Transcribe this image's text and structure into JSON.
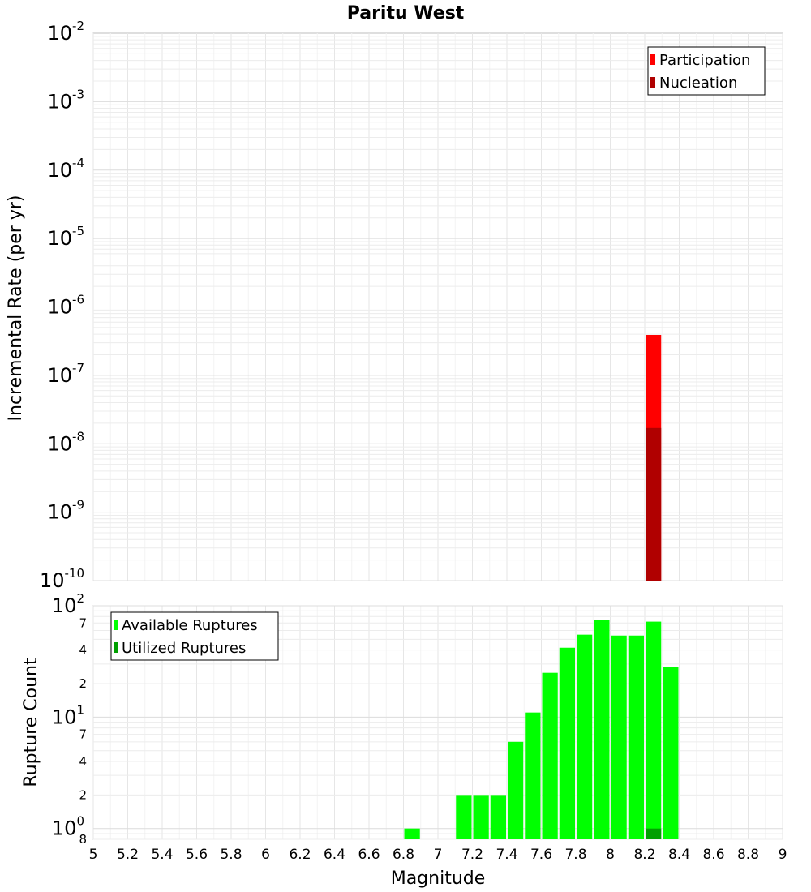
{
  "chart_data": [
    {
      "type": "bar",
      "title": "Paritu West",
      "ylabel": "Incremental Rate (per yr)",
      "xlim": [
        5,
        9
      ],
      "ylim": [
        1e-10,
        0.01
      ],
      "yscale": "log",
      "grid": true,
      "legend_position": "top-right",
      "bin_width": 0.1,
      "series": [
        {
          "name": "Participation",
          "color": "#ff0000",
          "x": [
            8.25
          ],
          "values": [
            3.9e-07
          ]
        },
        {
          "name": "Nucleation",
          "color": "#b00000",
          "x": [
            8.25
          ],
          "values": [
            1.7e-08
          ]
        }
      ]
    },
    {
      "type": "bar",
      "xlabel": "Magnitude",
      "ylabel": "Rupture Count",
      "xlim": [
        5,
        9
      ],
      "ylim": [
        0.8,
        100
      ],
      "yscale": "log",
      "grid": true,
      "legend_position": "top-left",
      "bin_width": 0.1,
      "series": [
        {
          "name": "Available Ruptures",
          "color": "#00ff00",
          "x": [
            6.85,
            7.15,
            7.25,
            7.35,
            7.45,
            7.55,
            7.65,
            7.75,
            7.85,
            7.95,
            8.05,
            8.15,
            8.25,
            8.35
          ],
          "values": [
            1,
            2,
            2,
            2,
            6,
            11,
            25,
            42,
            55,
            75,
            54,
            54,
            72,
            28
          ]
        },
        {
          "name": "Utilized Ruptures",
          "color": "#00a000",
          "x": [
            8.25
          ],
          "values": [
            1
          ]
        }
      ]
    }
  ],
  "axes": {
    "x_ticks": [
      "5",
      "5.2",
      "5.4",
      "5.6",
      "5.8",
      "6",
      "6.2",
      "6.4",
      "6.6",
      "6.8",
      "7",
      "7.2",
      "7.4",
      "7.6",
      "7.8",
      "8",
      "8.2",
      "8.4",
      "8.6",
      "8.8",
      "9"
    ],
    "top_y_ticks": [
      {
        "base": "10",
        "exp": "-2",
        "value": 0.01
      },
      {
        "base": "10",
        "exp": "-3",
        "value": 0.001
      },
      {
        "base": "10",
        "exp": "-4",
        "value": 0.0001
      },
      {
        "base": "10",
        "exp": "-5",
        "value": 1e-05
      },
      {
        "base": "10",
        "exp": "-6",
        "value": 1e-06
      },
      {
        "base": "10",
        "exp": "-7",
        "value": 1e-07
      },
      {
        "base": "10",
        "exp": "-8",
        "value": 1e-08
      },
      {
        "base": "10",
        "exp": "-9",
        "value": 1e-09
      },
      {
        "base": "10",
        "exp": "-10",
        "value": 1e-10
      }
    ],
    "bottom_y_major": [
      {
        "base": "10",
        "exp": "2",
        "value": 100
      },
      {
        "base": "10",
        "exp": "1",
        "value": 10
      },
      {
        "base": "10",
        "exp": "0",
        "value": 1
      }
    ],
    "bottom_y_minor": [
      {
        "label": "7",
        "value": 70
      },
      {
        "label": "4",
        "value": 40
      },
      {
        "label": "2",
        "value": 20
      },
      {
        "label": "7",
        "value": 7
      },
      {
        "label": "4",
        "value": 4
      },
      {
        "label": "2",
        "value": 2
      },
      {
        "label": "8",
        "value": 0.8
      }
    ]
  }
}
